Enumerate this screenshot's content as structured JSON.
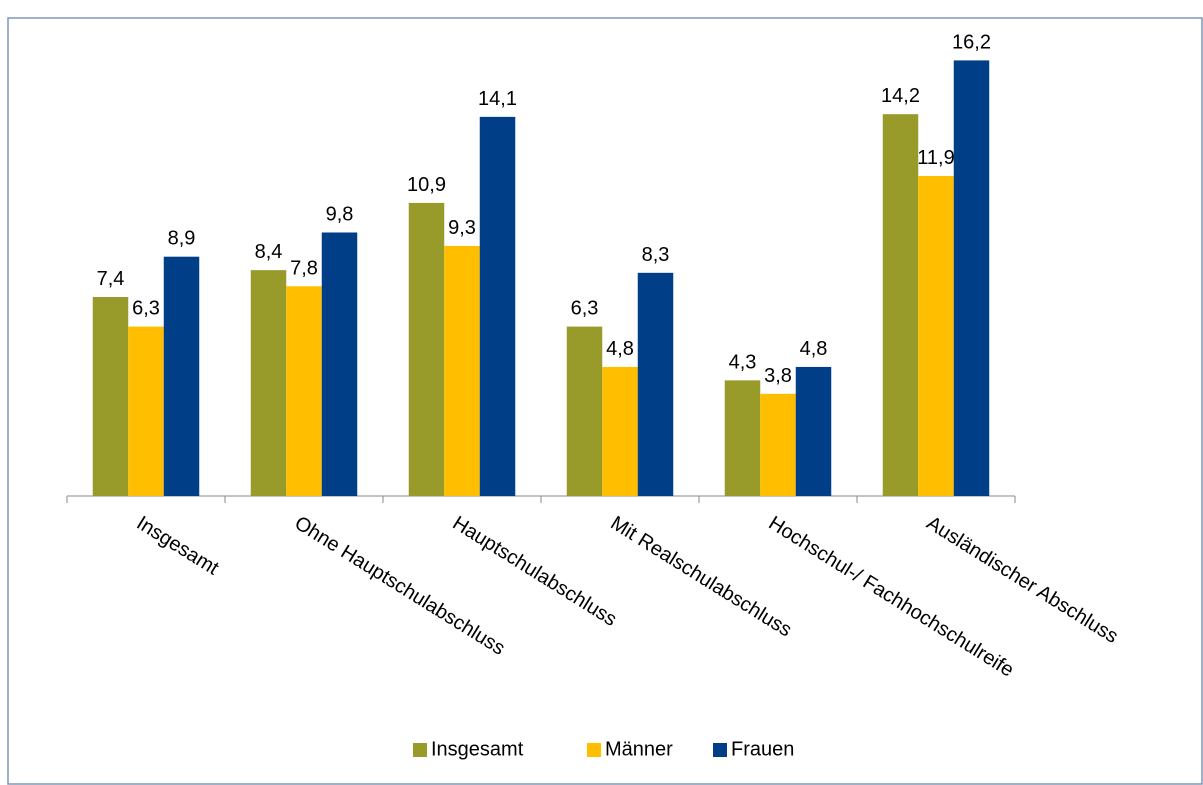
{
  "chart_data": {
    "type": "bar",
    "categories": [
      "Insgesamt",
      "Ohne Hauptschulabschluss",
      "Hauptschulabschluss",
      "Mit Realschulabschluss",
      "Hochschul-/ Fachhochschulreife",
      "Ausländischer Abschluss"
    ],
    "series": [
      {
        "name": "Insgesamt",
        "color": "#989a2a",
        "values": [
          7.4,
          8.4,
          10.9,
          6.3,
          4.3,
          14.2
        ],
        "value_labels": [
          "7,4",
          "8,4",
          "10,9",
          "6,3",
          "4,3",
          "14,2"
        ]
      },
      {
        "name": "Männer",
        "color": "#ffbf00",
        "values": [
          6.3,
          7.8,
          9.3,
          4.8,
          3.8,
          11.9
        ],
        "value_labels": [
          "6,3",
          "7,8",
          "9,3",
          "4,8",
          "3,8",
          "11,9"
        ]
      },
      {
        "name": "Frauen",
        "color": "#003f87",
        "values": [
          8.9,
          9.8,
          14.1,
          8.3,
          4.8,
          16.2
        ],
        "value_labels": [
          "8,9",
          "9,8",
          "14,1",
          "8,3",
          "4,8",
          "16,2"
        ]
      }
    ],
    "ylim": [
      0,
      18
    ],
    "grid": false,
    "legend": "bottom"
  }
}
